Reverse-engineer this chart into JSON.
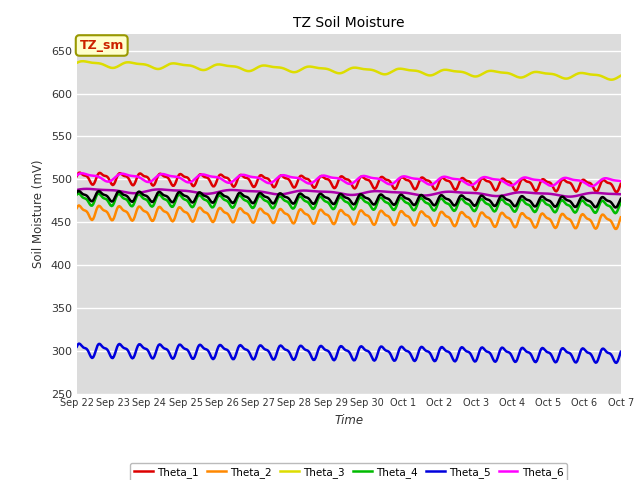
{
  "title": "TZ Soil Moisture",
  "xlabel": "Time",
  "ylabel": "Soil Moisture (mV)",
  "ylim": [
    250,
    670
  ],
  "yticks": [
    250,
    300,
    350,
    400,
    450,
    500,
    550,
    600,
    650
  ],
  "background_color": "#dcdcdc",
  "legend_label": "TZ_sm",
  "legend_label_color": "#cc2200",
  "legend_box_color": "#ffffcc",
  "n_points": 500,
  "series": {
    "Theta_1": {
      "color": "#dd0000",
      "base": 502,
      "trend": -0.018,
      "amp": 6,
      "freq": 1.8,
      "phase": 0.0
    },
    "Theta_2": {
      "color": "#ff8800",
      "base": 462,
      "trend": -0.022,
      "amp": 7,
      "freq": 1.8,
      "phase": 0.3
    },
    "Theta_3": {
      "color": "#dddd00",
      "base": 635,
      "trend": -0.03,
      "amp": 3,
      "freq": 0.8,
      "phase": 0.0
    },
    "Theta_4": {
      "color": "#00bb00",
      "base": 477,
      "trend": -0.018,
      "amp": 6,
      "freq": 1.8,
      "phase": 0.5
    },
    "Theta_5": {
      "color": "#0000dd",
      "base": 301,
      "trend": -0.012,
      "amp": 7,
      "freq": 1.8,
      "phase": 0.2
    },
    "Theta_6": {
      "color": "#ff00ff",
      "base": 503,
      "trend": -0.012,
      "amp": 4,
      "freq": 0.9,
      "phase": 0.1
    },
    "Theta_7": {
      "color": "#aa00aa",
      "base": 487,
      "trend": -0.01,
      "amp": 2,
      "freq": 0.5,
      "phase": 0.0
    },
    "Theta_avg": {
      "color": "#000000",
      "base": 481,
      "trend": -0.015,
      "amp": 5,
      "freq": 1.8,
      "phase": 0.4
    }
  },
  "xtick_labels": [
    "Sep 22",
    "Sep 23",
    "Sep 24",
    "Sep 25",
    "Sep 26",
    "Sep 27",
    "Sep 28",
    "Sep 29",
    "Sep 30",
    "Oct 1",
    "Oct 2",
    "Oct 3",
    "Oct 4",
    "Oct 5",
    "Oct 6",
    "Oct 7"
  ],
  "n_ticks": 16
}
